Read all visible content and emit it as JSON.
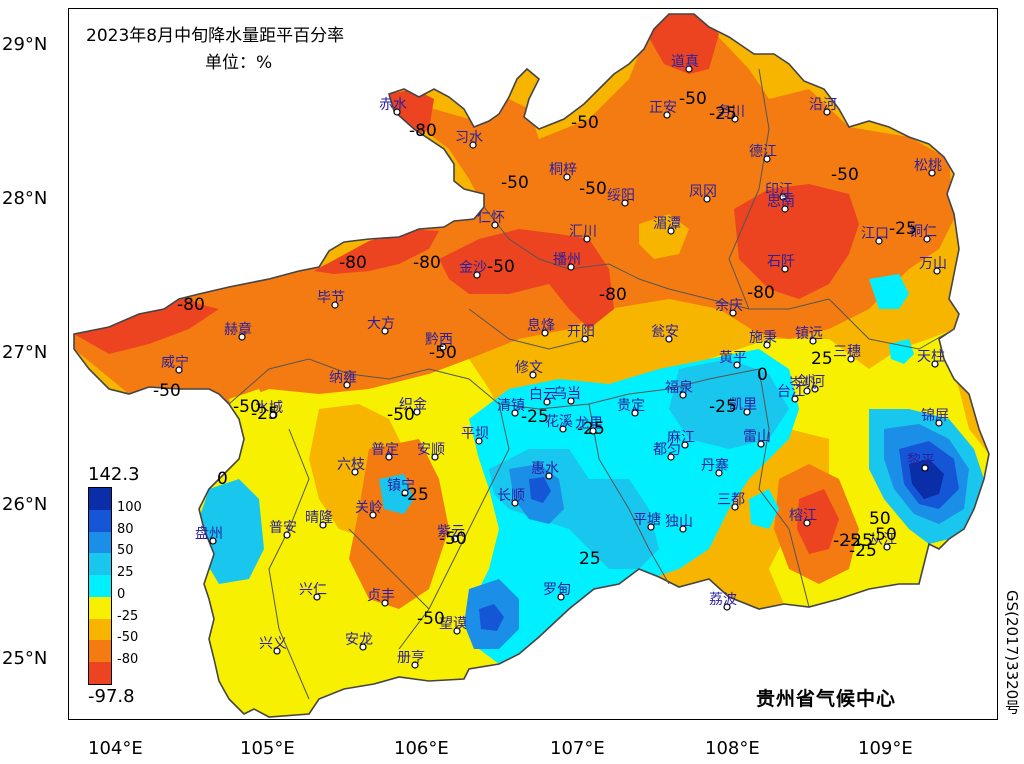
{
  "title": "2023年8月中旬降水量距平百分率",
  "unit": "单位：%",
  "credit": "贵州省气候中心",
  "map_number": "GS(2017)3320号",
  "axes": {
    "y_ticks": [
      "29°N",
      "28°N",
      "27°N",
      "26°N",
      "25°N"
    ],
    "x_ticks": [
      "104°E",
      "105°E",
      "106°E",
      "107°E",
      "108°E",
      "109°E"
    ]
  },
  "legend": {
    "max": "142.3",
    "min": "-97.8",
    "levels": [
      "100",
      "80",
      "50",
      "25",
      "0",
      "-25",
      "-50",
      "-80"
    ],
    "colors": [
      "#0a2ea8",
      "#1456d6",
      "#1b8ee8",
      "#19c6ee",
      "#00f0ff",
      "#f7f000",
      "#f7b500",
      "#f47b12",
      "#ec4420"
    ]
  },
  "cities": [
    {
      "name": "道真"
    },
    {
      "name": "赤水"
    },
    {
      "name": "习水"
    },
    {
      "name": "正安"
    },
    {
      "name": "务川"
    },
    {
      "name": "沿河"
    },
    {
      "name": "桐梓"
    },
    {
      "name": "德江"
    },
    {
      "name": "松桃"
    },
    {
      "name": "绥阳"
    },
    {
      "name": "凤冈"
    },
    {
      "name": "印江"
    },
    {
      "name": "仁怀"
    },
    {
      "name": "汇川"
    },
    {
      "name": "湄潭"
    },
    {
      "name": "思南"
    },
    {
      "name": "江口"
    },
    {
      "name": "铜仁"
    },
    {
      "name": "金沙"
    },
    {
      "name": "播州"
    },
    {
      "name": "石阡"
    },
    {
      "name": "万山"
    },
    {
      "name": "毕节"
    },
    {
      "name": "赫章"
    },
    {
      "name": "大方"
    },
    {
      "name": "黔西"
    },
    {
      "name": "息烽"
    },
    {
      "name": "开阳"
    },
    {
      "name": "瓮安"
    },
    {
      "name": "余庆"
    },
    {
      "name": "施秉"
    },
    {
      "name": "镇远"
    },
    {
      "name": "岑巩"
    },
    {
      "name": "三穗"
    },
    {
      "name": "黄平"
    },
    {
      "name": "天柱"
    },
    {
      "name": "威宁"
    },
    {
      "name": "纳雍"
    },
    {
      "name": "修文"
    },
    {
      "name": "白云"
    },
    {
      "name": "乌当"
    },
    {
      "name": "福泉"
    },
    {
      "name": "剑河"
    },
    {
      "name": "台江"
    },
    {
      "name": "凯里"
    },
    {
      "name": "织金"
    },
    {
      "name": "清镇"
    },
    {
      "name": "贵定"
    },
    {
      "name": "龙里"
    },
    {
      "name": "花溪"
    },
    {
      "name": "麻江"
    },
    {
      "name": "雷山"
    },
    {
      "name": "锦屏"
    },
    {
      "name": "水城"
    },
    {
      "name": "平坝"
    },
    {
      "name": "普定"
    },
    {
      "name": "安顺"
    },
    {
      "name": "六枝"
    },
    {
      "name": "都匀"
    },
    {
      "name": "丹寨"
    },
    {
      "name": "黎平"
    },
    {
      "name": "镇宁"
    },
    {
      "name": "惠水"
    },
    {
      "name": "长顺"
    },
    {
      "name": "三都"
    },
    {
      "name": "关岭"
    },
    {
      "name": "盘州"
    },
    {
      "name": "普安"
    },
    {
      "name": "晴隆"
    },
    {
      "name": "紫云"
    },
    {
      "name": "平塘"
    },
    {
      "name": "独山"
    },
    {
      "name": "榕江"
    },
    {
      "name": "从江"
    },
    {
      "name": "兴仁"
    },
    {
      "name": "贞丰"
    },
    {
      "name": "罗甸"
    },
    {
      "name": "荔波"
    },
    {
      "name": "望谟"
    },
    {
      "name": "兴义"
    },
    {
      "name": "安龙"
    },
    {
      "name": "册亨"
    }
  ],
  "contour_labels": [
    "-50",
    "-50",
    "-80",
    "-50",
    "-80",
    "-80",
    "-80",
    "-80",
    "-80",
    "-50",
    "-50",
    "-50",
    "-50",
    "-50",
    "-25",
    "-25",
    "-25",
    "-50",
    "-50",
    "-25",
    "-25",
    "0",
    "0",
    "25",
    "-25",
    "25",
    "-25",
    "50",
    "-25",
    "-50",
    "-50",
    "-25",
    "-50",
    "-25"
  ]
}
